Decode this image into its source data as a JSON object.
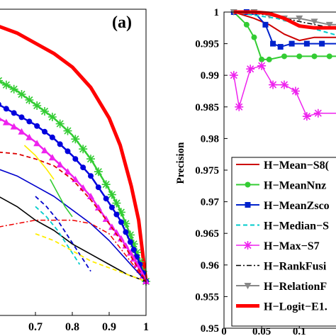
{
  "chart_data": [
    {
      "type": "line",
      "panel_label": "(a)",
      "xlim": [
        0.6,
        1.0
      ],
      "x_ticks": [
        {
          "value": 0.7,
          "label": "0.7"
        },
        {
          "value": 0.8,
          "label": "0.8"
        },
        {
          "value": 0.9,
          "label": "0.9"
        },
        {
          "value": 1.0,
          "label": "1"
        }
      ],
      "ylim": [
        0.1,
        1.0
      ],
      "grid": false,
      "series": [
        {
          "color": "#ff0000",
          "style": "solid-thick",
          "x": [
            0.6,
            0.65,
            0.7,
            0.75,
            0.8,
            0.85,
            0.9,
            0.93,
            0.96,
            0.98,
            1.0
          ],
          "y": [
            0.95,
            0.93,
            0.9,
            0.87,
            0.83,
            0.77,
            0.68,
            0.6,
            0.48,
            0.38,
            0.2
          ]
        },
        {
          "color": "#33cc33",
          "style": "solid-star",
          "x": [
            0.6,
            0.65,
            0.7,
            0.75,
            0.8,
            0.85,
            0.9,
            0.93,
            0.96,
            0.98,
            1.0
          ],
          "y": [
            0.79,
            0.76,
            0.72,
            0.68,
            0.63,
            0.56,
            0.47,
            0.41,
            0.33,
            0.27,
            0.2
          ]
        },
        {
          "color": "#0000dd",
          "style": "solid-dot",
          "x": [
            0.6,
            0.65,
            0.7,
            0.75,
            0.8,
            0.85,
            0.9,
            0.93,
            0.96,
            0.98,
            1.0
          ],
          "y": [
            0.72,
            0.69,
            0.66,
            0.62,
            0.57,
            0.51,
            0.43,
            0.38,
            0.31,
            0.26,
            0.2
          ]
        },
        {
          "color": "#ee22ee",
          "style": "solid-triangle",
          "x": [
            0.6,
            0.65,
            0.7,
            0.75,
            0.8,
            0.85,
            0.9,
            0.93,
            0.96,
            0.98,
            1.0
          ],
          "y": [
            0.68,
            0.65,
            0.61,
            0.56,
            0.51,
            0.45,
            0.37,
            0.33,
            0.28,
            0.24,
            0.2
          ]
        },
        {
          "color": "#dd0000",
          "style": "dashed",
          "x": [
            0.6,
            0.65,
            0.7,
            0.75,
            0.8,
            0.85,
            0.9,
            0.95,
            1.0
          ],
          "y": [
            0.58,
            0.575,
            0.56,
            0.54,
            0.5,
            0.44,
            0.37,
            0.29,
            0.2
          ]
        },
        {
          "color": "#0000cc",
          "style": "solid",
          "x": [
            0.6,
            0.65,
            0.7,
            0.75,
            0.8,
            0.85,
            0.9,
            0.95,
            1.0
          ],
          "y": [
            0.53,
            0.51,
            0.48,
            0.45,
            0.41,
            0.37,
            0.32,
            0.26,
            0.2
          ]
        },
        {
          "color": "#000000",
          "style": "solid",
          "x": [
            0.6,
            0.65,
            0.7,
            0.75,
            0.8,
            0.85,
            0.9,
            0.95,
            1.0
          ],
          "y": [
            0.45,
            0.42,
            0.38,
            0.35,
            0.31,
            0.28,
            0.25,
            0.22,
            0.2
          ]
        },
        {
          "color": "#ee0000",
          "style": "dash-dot",
          "x": [
            0.6,
            0.65,
            0.7,
            0.75,
            0.8,
            0.85,
            0.9,
            0.95,
            1.0
          ],
          "y": [
            0.36,
            0.37,
            0.38,
            0.38,
            0.38,
            0.37,
            0.34,
            0.27,
            0.2
          ]
        },
        {
          "color": "#ffee00",
          "style": "solid",
          "x": [
            0.67,
            0.7,
            0.73,
            0.75
          ],
          "y": [
            0.6,
            0.57,
            0.53,
            0.5
          ]
        },
        {
          "color": "#33cc33",
          "style": "solid",
          "x": [
            0.74,
            0.76,
            0.78,
            0.8
          ],
          "y": [
            0.5,
            0.46,
            0.42,
            0.39
          ]
        },
        {
          "color": "#0000cc",
          "style": "dashed",
          "x": [
            0.7,
            0.73,
            0.76,
            0.79,
            0.82,
            0.85
          ],
          "y": [
            0.45,
            0.42,
            0.38,
            0.33,
            0.28,
            0.23
          ]
        },
        {
          "color": "#00cccc",
          "style": "dashed",
          "x": [
            0.7,
            0.73,
            0.76,
            0.79,
            0.82
          ],
          "y": [
            0.42,
            0.39,
            0.35,
            0.3,
            0.25
          ]
        },
        {
          "color": "#ffee00",
          "style": "dashed",
          "x": [
            0.7,
            0.75,
            0.8,
            0.85,
            0.9,
            0.95,
            1.0
          ],
          "y": [
            0.34,
            0.32,
            0.29,
            0.26,
            0.24,
            0.22,
            0.2
          ]
        }
      ]
    },
    {
      "type": "line",
      "ylabel": "Precision",
      "xlim": [
        0,
        0.16
      ],
      "x_ticks": [
        {
          "value": 0,
          "label": "0"
        },
        {
          "value": 0.05,
          "label": "0.05"
        },
        {
          "value": 0.1,
          "label": "0.1"
        }
      ],
      "ylim": [
        0.95,
        1.0
      ],
      "y_ticks": [
        {
          "value": 1.0,
          "label": "1"
        },
        {
          "value": 0.995,
          "label": "0.995"
        },
        {
          "value": 0.99,
          "label": "0.99"
        },
        {
          "value": 0.985,
          "label": "0.985"
        },
        {
          "value": 0.98,
          "label": "0.98"
        },
        {
          "value": 0.975,
          "label": "0.975"
        },
        {
          "value": 0.97,
          "label": "0.97"
        },
        {
          "value": 0.965,
          "label": "0.965"
        },
        {
          "value": 0.96,
          "label": "0.96"
        },
        {
          "value": 0.955,
          "label": "0.955"
        },
        {
          "value": 0.95,
          "label": "0.95"
        }
      ],
      "grid": false,
      "legend_position": "bottom-right",
      "series": [
        {
          "name": "H−Mean−S8(",
          "color": "#cc0000",
          "marker": "none",
          "width": 2,
          "x": [
            0.013,
            0.04,
            0.06,
            0.08,
            0.1,
            0.12,
            0.14,
            0.16
          ],
          "y": [
            1.0,
            0.999,
            0.998,
            0.9965,
            0.9955,
            0.996,
            0.996,
            0.996
          ]
        },
        {
          "name": "H−MeanNnz",
          "color": "#33cc33",
          "marker": "circle",
          "width": 2,
          "x": [
            0.013,
            0.03,
            0.04,
            0.05,
            0.06,
            0.08,
            0.1,
            0.12,
            0.14,
            0.16
          ],
          "y": [
            1.0,
            0.998,
            0.996,
            0.9925,
            0.9925,
            0.993,
            0.993,
            0.993,
            0.993,
            0.993
          ]
        },
        {
          "name": "H−MeanZsco",
          "color": "#0022cc",
          "marker": "square",
          "width": 2,
          "x": [
            0.013,
            0.03,
            0.04,
            0.055,
            0.065,
            0.075,
            0.09,
            0.11,
            0.13,
            0.16
          ],
          "y": [
            1.0,
            1.0,
            1.0,
            0.998,
            0.995,
            0.9945,
            0.995,
            0.995,
            0.995,
            0.995
          ]
        },
        {
          "name": "H−Median−S",
          "color": "#00cccc",
          "marker": "none",
          "dash": "6 4",
          "width": 2,
          "x": [
            0.013,
            0.04,
            0.07,
            0.1,
            0.13,
            0.16
          ],
          "y": [
            1.0,
            0.9995,
            0.999,
            0.998,
            0.997,
            0.996
          ]
        },
        {
          "name": "H−Max−S7",
          "color": "#ee22ee",
          "marker": "star",
          "width": 1.5,
          "x": [
            0.013,
            0.02,
            0.035,
            0.05,
            0.065,
            0.08,
            0.095,
            0.11,
            0.125,
            0.16
          ],
          "y": [
            0.99,
            0.985,
            0.991,
            0.9915,
            0.9885,
            0.9885,
            0.9875,
            0.9835,
            0.984,
            0.984
          ]
        },
        {
          "name": "H−RankFusi",
          "color": "#000000",
          "marker": "none",
          "dash": "7 3 2 3",
          "width": 1.5,
          "x": [
            0.013,
            0.04,
            0.07,
            0.1,
            0.13,
            0.16
          ],
          "y": [
            1.0,
            0.9998,
            0.9993,
            0.9985,
            0.9978,
            0.997
          ]
        },
        {
          "name": "H−RelationF",
          "color": "#888888",
          "marker": "triangle-down",
          "width": 2,
          "x": [
            0.013,
            0.04,
            0.06,
            0.08,
            0.1,
            0.12,
            0.14,
            0.16
          ],
          "y": [
            1.0,
            1.0,
            0.9995,
            0.999,
            0.999,
            0.9985,
            0.998,
            0.998
          ]
        },
        {
          "name": "H−Logit−E1.",
          "color": "#ff0000",
          "marker": "none",
          "width": 5,
          "x": [
            0.013,
            0.04,
            0.06,
            0.08,
            0.1,
            0.12,
            0.14,
            0.16
          ],
          "y": [
            1.0,
            1.0,
            0.9998,
            0.999,
            0.9978,
            0.9975,
            0.9975,
            0.9975
          ]
        }
      ]
    }
  ]
}
